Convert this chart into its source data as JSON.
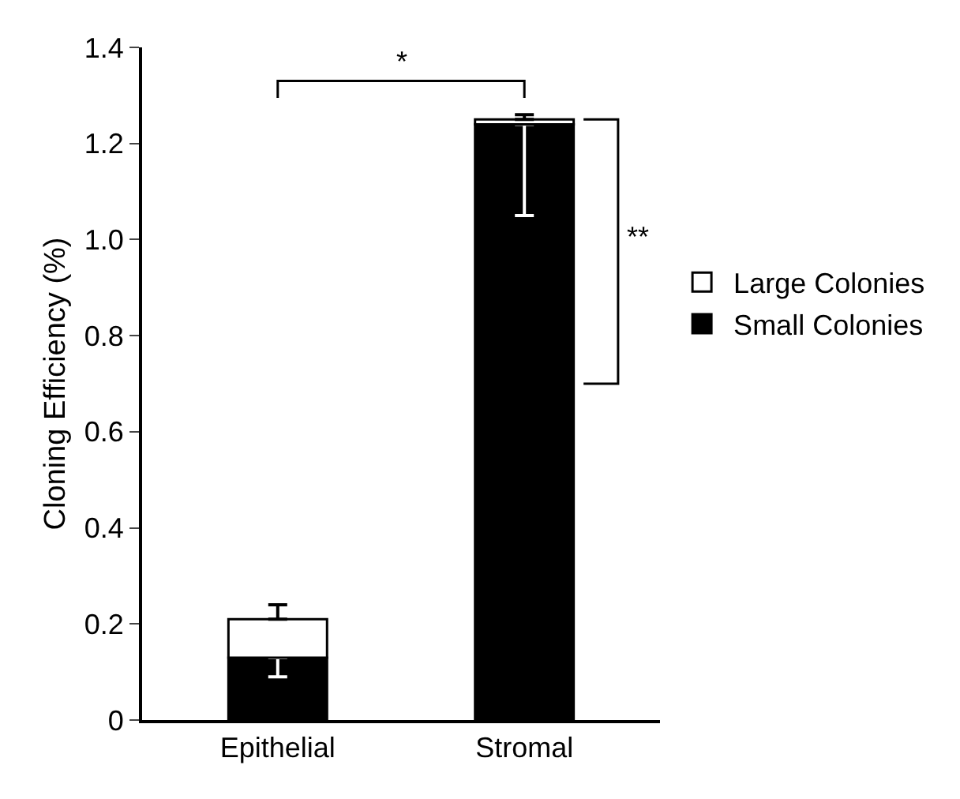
{
  "chart_data": {
    "type": "bar",
    "stacked": true,
    "ylabel": "Cloning Efficiency (%)",
    "categories": [
      "Epithelial",
      "Stromal"
    ],
    "series": [
      {
        "name": "Small Colonies",
        "color": "#000000",
        "values": [
          0.13,
          1.24
        ],
        "errors": [
          [
            0.09,
            0.13
          ],
          [
            1.05,
            1.24
          ]
        ]
      },
      {
        "name": "Large Colonies",
        "color": "#ffffff",
        "values": [
          0.08,
          0.01
        ],
        "errors": [
          [
            0.21,
            0.24
          ],
          [
            1.25,
            1.26
          ]
        ]
      }
    ],
    "ylim": [
      0,
      1.4
    ],
    "yticks": [
      0,
      0.2,
      0.4,
      0.6,
      {
        "value": 1.0,
        "label": "1.0"
      },
      0.8,
      1.2,
      1.4
    ],
    "grid": false,
    "legend": "right",
    "annotations": [
      "*",
      "**"
    ]
  }
}
